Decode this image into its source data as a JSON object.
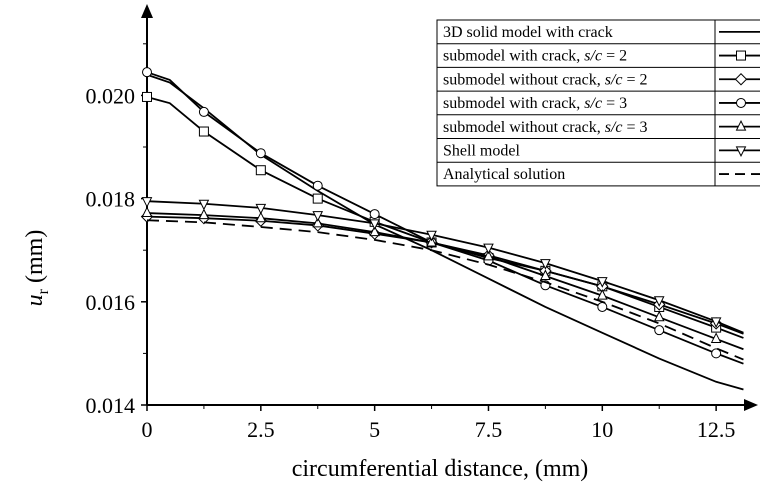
{
  "chart_data": {
    "type": "line",
    "xlabel": "circumferential distance, (mm)",
    "ylabel_main": "u",
    "ylabel_sub": "r",
    "ylabel_unit": " (mm)",
    "xlim": [
      0,
      13.2
    ],
    "ylim": [
      0.014,
      0.0215
    ],
    "x_ticks": [
      0,
      2.5,
      5,
      7.5,
      10,
      12.5
    ],
    "x_tick_labels": [
      "0",
      "2.5",
      "5",
      "7.5",
      "10",
      "12.5"
    ],
    "y_ticks": [
      0.014,
      0.016,
      0.018,
      0.02
    ],
    "y_tick_labels": [
      "0.014",
      "0.016",
      "0.018",
      "0.020"
    ],
    "grid": false,
    "legend_position": "top-right",
    "series": [
      {
        "name": "3D solid model with crack",
        "marker": "none",
        "dash": "solid",
        "x": [
          0,
          0.5,
          1.25,
          2.5,
          3.75,
          5,
          6.25,
          7.5,
          8.75,
          10,
          11.25,
          12.5,
          13.1
        ],
        "values": [
          0.0204,
          0.02025,
          0.01975,
          0.01885,
          0.01815,
          0.0175,
          0.017,
          0.01645,
          0.0159,
          0.0154,
          0.0149,
          0.01445,
          0.0143
        ]
      },
      {
        "name": "submodel with crack, s/c = 2",
        "label_plain": "submodel with crack, ",
        "label_italic": "s/c",
        "label_tail": " = 2",
        "marker": "square",
        "dash": "solid",
        "x": [
          0,
          0.5,
          1.25,
          2.5,
          3.75,
          5,
          6.25,
          7.5,
          8.75,
          10,
          11.25,
          12.5,
          13.1
        ],
        "values": [
          0.01997,
          0.01985,
          0.0193,
          0.01855,
          0.018,
          0.01755,
          0.01715,
          0.01685,
          0.0166,
          0.0163,
          0.0159,
          0.0155,
          0.0153
        ],
        "marker_x": [
          0,
          1.25,
          2.5,
          3.75,
          5,
          6.25,
          7.5,
          8.75,
          10,
          11.25,
          12.5
        ]
      },
      {
        "name": "submodel without crack, s/c = 2",
        "label_plain": "submodel without crack, ",
        "label_italic": "s/c",
        "label_tail": " = 2",
        "marker": "diamond",
        "dash": "solid",
        "x": [
          0,
          1.25,
          2.5,
          3.75,
          5,
          6.25,
          7.5,
          8.75,
          10,
          11.25,
          12.5,
          13.1
        ],
        "values": [
          0.01765,
          0.01762,
          0.01757,
          0.01748,
          0.01732,
          0.01715,
          0.0169,
          0.0166,
          0.0163,
          0.01595,
          0.01558,
          0.01538
        ],
        "marker_x": [
          0,
          1.25,
          2.5,
          3.75,
          5,
          6.25,
          7.5,
          8.75,
          10,
          11.25,
          12.5
        ]
      },
      {
        "name": "submodel with crack, s/c = 3",
        "label_plain": "submodel with crack, ",
        "label_italic": "s/c",
        "label_tail": " = 3",
        "marker": "circle",
        "dash": "solid",
        "x": [
          0,
          0.5,
          1.25,
          2.5,
          3.75,
          5,
          6.25,
          7.5,
          8.75,
          10,
          11.25,
          12.5,
          13.1
        ],
        "values": [
          0.02045,
          0.0203,
          0.01968,
          0.01888,
          0.01825,
          0.0177,
          0.01715,
          0.0168,
          0.01632,
          0.0159,
          0.01545,
          0.015,
          0.0148
        ],
        "marker_x": [
          0,
          1.25,
          2.5,
          3.75,
          5,
          6.25,
          7.5,
          8.75,
          10,
          11.25,
          12.5
        ]
      },
      {
        "name": "submodel without crack, s/c = 3",
        "label_plain": "submodel without crack, ",
        "label_italic": "s/c",
        "label_tail": " = 3",
        "marker": "triangle-up",
        "dash": "solid",
        "x": [
          0,
          1.25,
          2.5,
          3.75,
          5,
          6.25,
          7.5,
          8.75,
          10,
          11.25,
          12.5,
          13.1
        ],
        "values": [
          0.01772,
          0.01768,
          0.01762,
          0.01752,
          0.01735,
          0.01715,
          0.01688,
          0.0165,
          0.01612,
          0.0157,
          0.01528,
          0.01508
        ],
        "marker_x": [
          0,
          1.25,
          2.5,
          3.75,
          5,
          6.25,
          7.5,
          8.75,
          10,
          11.25,
          12.5
        ]
      },
      {
        "name": "Shell model",
        "marker": "triangle-down",
        "dash": "solid",
        "x": [
          0,
          1.25,
          2.5,
          3.75,
          5,
          6.25,
          7.5,
          8.75,
          10,
          11.25,
          12.5,
          13.1
        ],
        "values": [
          0.01795,
          0.0179,
          0.01782,
          0.01768,
          0.01752,
          0.0173,
          0.01705,
          0.01675,
          0.0164,
          0.01603,
          0.01562,
          0.0154
        ],
        "marker_x": [
          0,
          1.25,
          2.5,
          3.75,
          5,
          6.25,
          7.5,
          8.75,
          10,
          11.25,
          12.5
        ]
      },
      {
        "name": "Analytical solution",
        "marker": "none",
        "dash": "dashed",
        "x": [
          0,
          1.25,
          2.5,
          3.75,
          5,
          6.25,
          7.5,
          8.75,
          10,
          11.25,
          12.5,
          13.1
        ],
        "values": [
          0.01758,
          0.01754,
          0.01745,
          0.01735,
          0.0172,
          0.017,
          0.01672,
          0.01638,
          0.016,
          0.01558,
          0.0151,
          0.01488
        ]
      }
    ]
  }
}
